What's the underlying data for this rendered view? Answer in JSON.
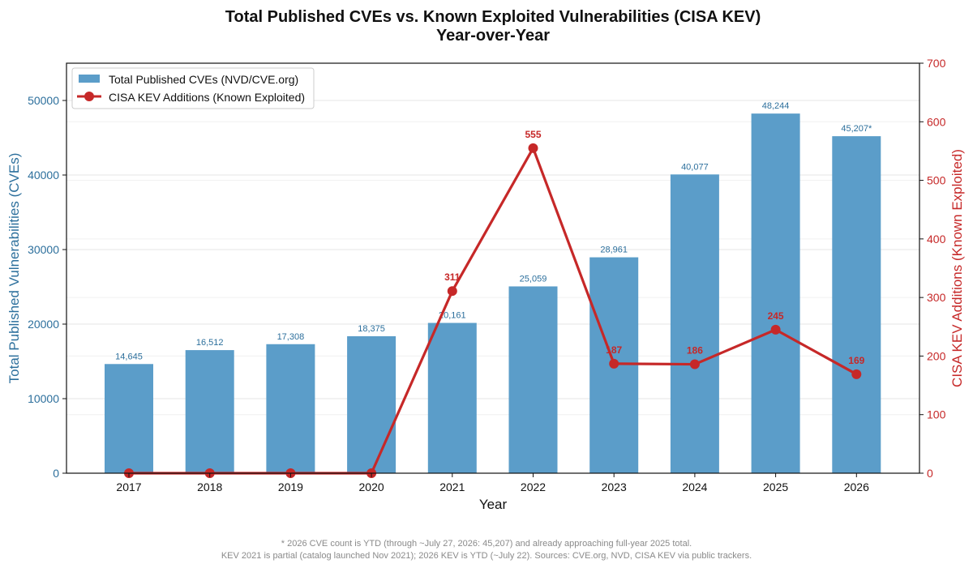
{
  "chart_data": {
    "type": "bar+line",
    "title": "Total Published CVEs vs. Known Exploited Vulnerabilities (CISA KEV)",
    "subtitle": "Year-over-Year",
    "xlabel": "Year",
    "ylabel_left": "Total Published Vulnerabilities (CVEs)",
    "ylabel_right": "CISA KEV Additions (Known Exploited)",
    "categories": [
      "2017",
      "2018",
      "2019",
      "2020",
      "2021",
      "2022",
      "2023",
      "2024",
      "2025",
      "2026"
    ],
    "ylim_left": [
      0,
      55000
    ],
    "ylim_right": [
      0,
      700
    ],
    "yticks_left": [
      0,
      10000,
      20000,
      30000,
      40000,
      50000
    ],
    "yticks_right": [
      0,
      100,
      200,
      300,
      400,
      500,
      600,
      700
    ],
    "grid": true,
    "legend_position": "top-left",
    "series": [
      {
        "name": "Total Published CVEs (NVD/CVE.org)",
        "type": "bar",
        "axis": "left",
        "color": "#5b9dc9",
        "values": [
          14645,
          16512,
          17308,
          18375,
          20161,
          25059,
          28961,
          40077,
          48244,
          45207
        ],
        "labels": [
          "14,645",
          "16,512",
          "17,308",
          "18,375",
          "20,161",
          "25,059",
          "28,961",
          "40,077",
          "48,244",
          "45,207*"
        ]
      },
      {
        "name": "CISA KEV Additions (Known Exploited)",
        "type": "line",
        "axis": "right",
        "color": "#c62828",
        "values": [
          0,
          0,
          0,
          0,
          311,
          555,
          187,
          186,
          245,
          169
        ],
        "labels": [
          "",
          "",
          "",
          "",
          "311",
          "555",
          "187",
          "186",
          "245",
          "169"
        ]
      }
    ],
    "footnotes": [
      "* 2026 CVE count is YTD (through ~July 27, 2026: 45,207) and already approaching full-year 2025 total.",
      "KEV 2021 is partial (catalog launched Nov 2021); 2026 KEV is YTD (~July 22). Sources: CVE.org, NVD, CISA KEV via public trackers."
    ]
  }
}
